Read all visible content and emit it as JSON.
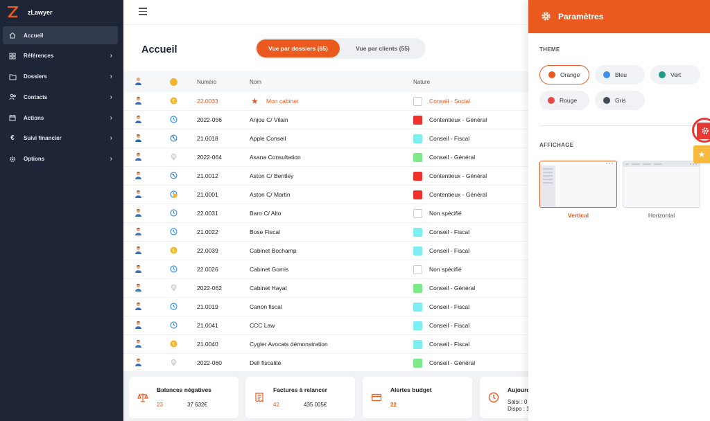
{
  "app": {
    "name": "zLawyer"
  },
  "sidebar": {
    "items": [
      {
        "label": "Accueil",
        "icon": "home-icon",
        "active": true,
        "has_children": false
      },
      {
        "label": "Références",
        "icon": "grid-icon",
        "active": false,
        "has_children": true
      },
      {
        "label": "Dossiers",
        "icon": "folder-icon",
        "active": false,
        "has_children": true
      },
      {
        "label": "Contacts",
        "icon": "users-icon",
        "active": false,
        "has_children": true
      },
      {
        "label": "Actions",
        "icon": "calendar-icon",
        "active": false,
        "has_children": true
      },
      {
        "label": "Suivi financier",
        "icon": "euro-icon",
        "active": false,
        "has_children": true
      },
      {
        "label": "Options",
        "icon": "gear-icon",
        "active": false,
        "has_children": true
      }
    ]
  },
  "page": {
    "title": "Accueil",
    "view_toggle": {
      "active": "Vue par dossiers (65)",
      "inactive": "Vue par clients (55)"
    }
  },
  "table": {
    "headers": {
      "numero": "Numéro",
      "nom": "Nom",
      "nature": "Nature"
    },
    "rows": [
      {
        "state": "euro",
        "numero": "22.0033",
        "nom": "Mon cabinet",
        "nature": "Conseil - Social",
        "nature_color": "#ffffff",
        "highlight": true,
        "star": true
      },
      {
        "state": "clock",
        "numero": "2022-056",
        "nom": "Anjou C/ Vilain",
        "nature": "Contentieux - Général",
        "nature_color": "#f0302a"
      },
      {
        "state": "clock-slash",
        "numero": "21.0018",
        "nom": "Apple Conseil",
        "nature": "Conseil - Fiscal",
        "nature_color": "#7eeef2"
      },
      {
        "state": "bulb",
        "numero": "2022-064",
        "nom": "Asana Consultation",
        "nature": "Conseil - Général",
        "nature_color": "#7ee987"
      },
      {
        "state": "clock-slash",
        "numero": "21.0012",
        "nom": "Aston C/ Bentley",
        "nature": "Contentieux - Général",
        "nature_color": "#f0302a"
      },
      {
        "state": "clock-euro",
        "numero": "21.0001",
        "nom": "Aston C/ Martin",
        "nature": "Contentieux - Général",
        "nature_color": "#f0302a"
      },
      {
        "state": "clock",
        "numero": "22.0031",
        "nom": "Baro C/ Alto",
        "nature": "Non spécifié",
        "nature_color": "#ffffff"
      },
      {
        "state": "clock",
        "numero": "21.0022",
        "nom": "Bose Fiscal",
        "nature": "Conseil - Fiscal",
        "nature_color": "#7eeef2"
      },
      {
        "state": "euro",
        "numero": "22.0039",
        "nom": "Cabinet Bochamp",
        "nature": "Conseil - Fiscal",
        "nature_color": "#7eeef2"
      },
      {
        "state": "clock",
        "numero": "22.0026",
        "nom": "Cabinet Gomis",
        "nature": "Non spécifié",
        "nature_color": "#ffffff"
      },
      {
        "state": "bulb",
        "numero": "2022-062",
        "nom": "Cabinet Hayat",
        "nature": "Conseil - Général",
        "nature_color": "#7ee987"
      },
      {
        "state": "clock",
        "numero": "21.0019",
        "nom": "Canon fiscal",
        "nature": "Conseil - Fiscal",
        "nature_color": "#7eeef2"
      },
      {
        "state": "clock",
        "numero": "21.0041",
        "nom": "CCC Law",
        "nature": "Conseil - Fiscal",
        "nature_color": "#7eeef2"
      },
      {
        "state": "euro",
        "numero": "21.0040",
        "nom": "Cygler Avocats démonstration",
        "nature": "Conseil - Fiscal",
        "nature_color": "#7eeef2"
      },
      {
        "state": "bulb",
        "numero": "2022-060",
        "nom": "Dell fiscalité",
        "nature": "Conseil - Général",
        "nature_color": "#7ee987"
      }
    ]
  },
  "cards": [
    {
      "icon": "scale-icon",
      "title": "Balances négatives",
      "v1": "23",
      "v2": "37 632€"
    },
    {
      "icon": "invoice-icon",
      "title": "Factures à relancer",
      "v1": "42",
      "v2": "435 005€"
    },
    {
      "icon": "card-icon",
      "title": "Alertes budget",
      "v1": "22",
      "v2": ""
    },
    {
      "icon": "clock-icon",
      "title": "Aujourd",
      "v1": "Saisi : 0",
      "v2": "Dispo : 1"
    }
  ],
  "settings": {
    "title": "Paramètres",
    "theme_label": "THEME",
    "themes": [
      {
        "label": "Orange",
        "color": "#ea5a1e",
        "selected": true
      },
      {
        "label": "Bleu",
        "color": "#3b8fe8",
        "selected": false
      },
      {
        "label": "Vert",
        "color": "#1b9b86",
        "selected": false
      },
      {
        "label": "Rouge",
        "color": "#e54a4a",
        "selected": false
      },
      {
        "label": "Gris",
        "color": "#444a55",
        "selected": false
      }
    ],
    "display_label": "AFFICHAGE",
    "layouts": [
      {
        "label": "Vertical",
        "selected": true
      },
      {
        "label": "Horizontal",
        "selected": false
      }
    ]
  },
  "colors": {
    "accent": "#ea5a1e",
    "sidebar": "#1e2536",
    "alert": "#e53935",
    "favorite": "#f6b93b"
  }
}
